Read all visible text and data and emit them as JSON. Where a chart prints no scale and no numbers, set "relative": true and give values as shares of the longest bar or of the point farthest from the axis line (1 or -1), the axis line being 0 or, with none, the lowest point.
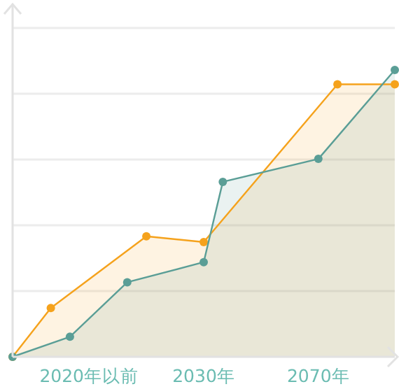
{
  "chart_data": {
    "type": "area",
    "relative": true,
    "categories": [
      null,
      null,
      null,
      null,
      "2020年以前",
      null,
      null,
      null,
      null,
      null,
      "2030年",
      null,
      null,
      null,
      null,
      null,
      "2070年",
      null,
      null,
      null,
      null
    ],
    "tick_labels": "x",
    "grid": "y",
    "marker": "circle",
    "series": [
      {
        "color": "#f5a21c",
        "values": [
          0,
          null,
          0.17,
          null,
          null,
          null,
          null,
          0.42,
          null,
          null,
          0.4,
          null,
          null,
          null,
          null,
          null,
          null,
          0.95,
          null,
          null,
          0.95
        ]
      },
      {
        "color": "#5a9e96",
        "values": [
          0,
          null,
          null,
          0.07,
          null,
          null,
          0.26,
          null,
          null,
          null,
          0.33,
          0.61,
          null,
          null,
          null,
          null,
          0.69,
          null,
          null,
          null,
          1
        ]
      }
    ]
  }
}
